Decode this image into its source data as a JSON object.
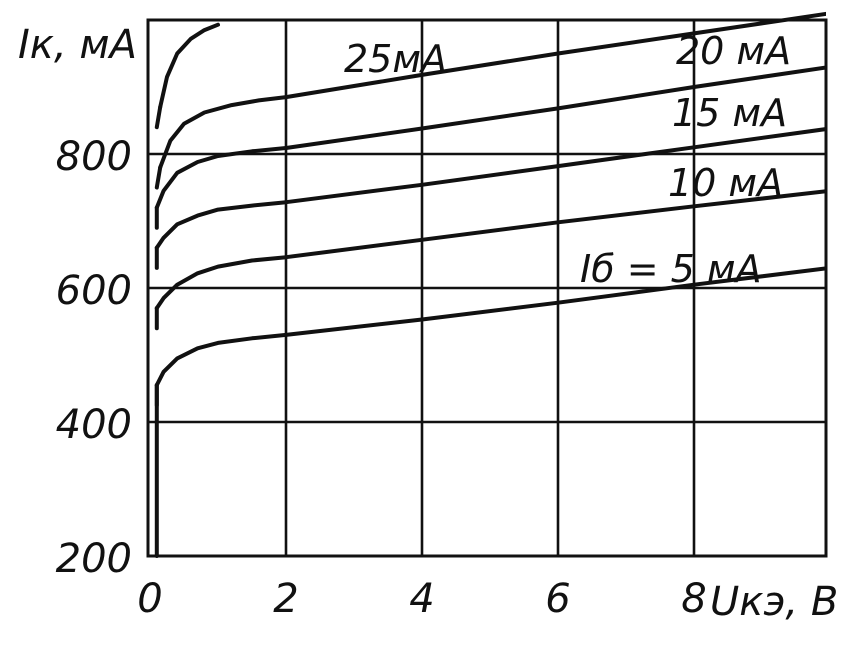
{
  "chart_data": {
    "type": "line",
    "xlabel": "Uкэ, В",
    "ylabel": "Iк, мА",
    "xlim": [
      0,
      10
    ],
    "ylim": [
      200,
      1000
    ],
    "x_ticks": [
      "0",
      "2",
      "4",
      "6",
      "8"
    ],
    "y_ticks": [
      "200",
      "400",
      "600",
      "800"
    ],
    "grid": true,
    "series": [
      {
        "name": "Iб = 5 мА",
        "x": [
          0.1,
          0.2,
          0.4,
          0.7,
          1,
          1.5,
          2,
          4,
          6,
          8,
          10
        ],
        "y": [
          455,
          475,
          495,
          510,
          518,
          525,
          530,
          553,
          578,
          605,
          630
        ]
      },
      {
        "name": "10 мА",
        "x": [
          0.1,
          0.2,
          0.4,
          0.7,
          1,
          1.5,
          2,
          4,
          6,
          8,
          10
        ],
        "y": [
          570,
          585,
          605,
          622,
          632,
          641,
          646,
          672,
          698,
          722,
          745
        ]
      },
      {
        "name": "15 мА",
        "x": [
          0.1,
          0.2,
          0.4,
          0.7,
          1,
          1.5,
          2,
          4,
          6,
          8,
          10
        ],
        "y": [
          660,
          675,
          695,
          708,
          717,
          723,
          728,
          754,
          782,
          810,
          838
        ]
      },
      {
        "name": "20 мА",
        "x": [
          0.1,
          0.2,
          0.4,
          0.7,
          1,
          1.5,
          2,
          4,
          6,
          8,
          10
        ],
        "y": [
          720,
          745,
          772,
          788,
          797,
          804,
          809,
          838,
          868,
          900,
          930
        ]
      },
      {
        "name": "",
        "x": [
          0.15,
          0.3,
          0.5,
          0.8,
          1.2,
          1.6,
          2,
          4,
          6,
          8,
          10
        ],
        "y": [
          780,
          820,
          845,
          862,
          873,
          880,
          885,
          918,
          950,
          980,
          1010
        ]
      },
      {
        "name": "25мА",
        "x": [
          0.15,
          0.25,
          0.4,
          0.6,
          0.8,
          1.0
        ],
        "y": [
          870,
          915,
          950,
          972,
          985,
          993
        ]
      }
    ]
  }
}
